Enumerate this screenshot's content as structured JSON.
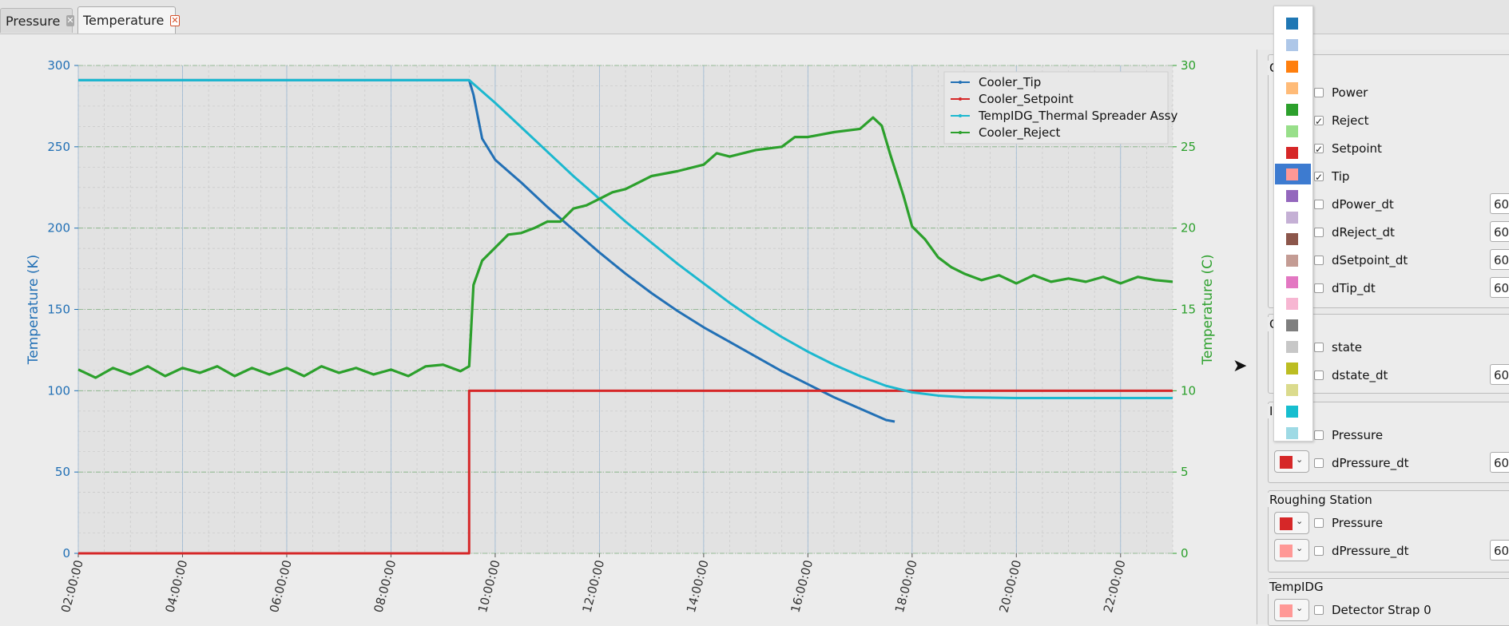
{
  "tabs": [
    {
      "label": "Pressure",
      "active": false
    },
    {
      "label": "Temperature",
      "active": true
    }
  ],
  "chart_data": {
    "type": "line",
    "x_ticks": [
      "02:00:00",
      "04:00:00",
      "06:00:00",
      "08:00:00",
      "10:00:00",
      "12:00:00",
      "14:00:00",
      "16:00:00",
      "18:00:00",
      "20:00:00",
      "22:00:00"
    ],
    "xlim": [
      "02:00:00",
      "23:00:00"
    ],
    "ylabel_left": "Temperature (K)",
    "ylabel_right": "Temperature (C)",
    "ylim_left": [
      0,
      300
    ],
    "ylim_right": [
      0,
      30
    ],
    "yticks_left": [
      "0",
      "50",
      "100",
      "150",
      "200",
      "250",
      "300"
    ],
    "yticks_right": [
      "0",
      "5",
      "10",
      "15",
      "20",
      "25",
      "30"
    ],
    "grid": true,
    "legend_position": "top-right",
    "series": [
      {
        "name": "Cooler_Tip",
        "axis": "left",
        "color": "#2270b5",
        "points": [
          [
            "02:00",
            291
          ],
          [
            "09:30",
            291
          ],
          [
            "09:35",
            282
          ],
          [
            "09:45",
            255
          ],
          [
            "10:00",
            242
          ],
          [
            "10:30",
            228
          ],
          [
            "11:00",
            213
          ],
          [
            "11:30",
            199
          ],
          [
            "12:00",
            185
          ],
          [
            "12:30",
            172
          ],
          [
            "13:00",
            160
          ],
          [
            "13:30",
            149
          ],
          [
            "14:00",
            139
          ],
          [
            "14:30",
            130
          ],
          [
            "15:00",
            121
          ],
          [
            "15:30",
            112
          ],
          [
            "16:00",
            104
          ],
          [
            "16:30",
            96
          ],
          [
            "17:00",
            89
          ],
          [
            "17:30",
            82
          ],
          [
            "17:40",
            81
          ]
        ]
      },
      {
        "name": "Cooler_Setpoint",
        "axis": "left",
        "color": "#d62728",
        "points": [
          [
            "02:00",
            0
          ],
          [
            "09:30",
            0
          ],
          [
            "09:30",
            100
          ],
          [
            "23:00",
            100
          ]
        ]
      },
      {
        "name": "TempIDG_Thermal Spreader Assy",
        "axis": "left",
        "color": "#1cb8cf",
        "points": [
          [
            "02:00",
            291
          ],
          [
            "09:30",
            291
          ],
          [
            "10:00",
            277
          ],
          [
            "10:30",
            262
          ],
          [
            "11:00",
            247
          ],
          [
            "11:30",
            232
          ],
          [
            "12:00",
            218
          ],
          [
            "12:30",
            204
          ],
          [
            "13:00",
            191
          ],
          [
            "13:30",
            178
          ],
          [
            "14:00",
            166
          ],
          [
            "14:30",
            154
          ],
          [
            "15:00",
            143
          ],
          [
            "15:30",
            133
          ],
          [
            "16:00",
            124
          ],
          [
            "16:30",
            116
          ],
          [
            "17:00",
            109
          ],
          [
            "17:30",
            103
          ],
          [
            "18:00",
            99
          ],
          [
            "18:30",
            97
          ],
          [
            "19:00",
            96
          ],
          [
            "20:00",
            95.5
          ],
          [
            "21:00",
            95.5
          ],
          [
            "22:00",
            95.5
          ],
          [
            "23:00",
            95.5
          ]
        ]
      },
      {
        "name": "Cooler_Reject",
        "axis": "right",
        "color": "#2ca02c",
        "points": [
          [
            "02:00",
            11.3
          ],
          [
            "02:20",
            10.8
          ],
          [
            "02:40",
            11.4
          ],
          [
            "03:00",
            11.0
          ],
          [
            "03:20",
            11.5
          ],
          [
            "03:40",
            10.9
          ],
          [
            "04:00",
            11.4
          ],
          [
            "04:20",
            11.1
          ],
          [
            "04:40",
            11.5
          ],
          [
            "05:00",
            10.9
          ],
          [
            "05:20",
            11.4
          ],
          [
            "05:40",
            11.0
          ],
          [
            "06:00",
            11.4
          ],
          [
            "06:20",
            10.9
          ],
          [
            "06:40",
            11.5
          ],
          [
            "07:00",
            11.1
          ],
          [
            "07:20",
            11.4
          ],
          [
            "07:40",
            11.0
          ],
          [
            "08:00",
            11.3
          ],
          [
            "08:20",
            10.9
          ],
          [
            "08:40",
            11.5
          ],
          [
            "09:00",
            11.6
          ],
          [
            "09:20",
            11.2
          ],
          [
            "09:30",
            11.5
          ],
          [
            "09:35",
            16.5
          ],
          [
            "09:45",
            18.0
          ],
          [
            "10:00",
            18.8
          ],
          [
            "10:15",
            19.6
          ],
          [
            "10:30",
            19.7
          ],
          [
            "10:45",
            20.0
          ],
          [
            "11:00",
            20.4
          ],
          [
            "11:15",
            20.4
          ],
          [
            "11:30",
            21.2
          ],
          [
            "11:45",
            21.4
          ],
          [
            "12:00",
            21.8
          ],
          [
            "12:15",
            22.2
          ],
          [
            "12:30",
            22.4
          ],
          [
            "12:45",
            22.8
          ],
          [
            "13:00",
            23.2
          ],
          [
            "13:30",
            23.5
          ],
          [
            "14:00",
            23.9
          ],
          [
            "14:15",
            24.6
          ],
          [
            "14:30",
            24.4
          ],
          [
            "15:00",
            24.8
          ],
          [
            "15:30",
            25.0
          ],
          [
            "15:45",
            25.6
          ],
          [
            "16:00",
            25.6
          ],
          [
            "16:30",
            25.9
          ],
          [
            "17:00",
            26.1
          ],
          [
            "17:15",
            26.8
          ],
          [
            "17:25",
            26.3
          ],
          [
            "17:35",
            24.5
          ],
          [
            "17:50",
            22.0
          ],
          [
            "18:00",
            20.1
          ],
          [
            "18:15",
            19.3
          ],
          [
            "18:30",
            18.2
          ],
          [
            "18:45",
            17.6
          ],
          [
            "19:00",
            17.2
          ],
          [
            "19:20",
            16.8
          ],
          [
            "19:40",
            17.1
          ],
          [
            "20:00",
            16.6
          ],
          [
            "20:20",
            17.1
          ],
          [
            "20:40",
            16.7
          ],
          [
            "21:00",
            16.9
          ],
          [
            "21:20",
            16.7
          ],
          [
            "21:40",
            17.0
          ],
          [
            "22:00",
            16.6
          ],
          [
            "22:20",
            17.0
          ],
          [
            "22:40",
            16.8
          ],
          [
            "23:00",
            16.7
          ]
        ]
      }
    ]
  },
  "popup_swatches": [
    "#1f77b4",
    "#aec7e8",
    "#ff7f0e",
    "#ffbb78",
    "#2ca02c",
    "#98df8a",
    "#d62728",
    "#ff9896",
    "#9467bd",
    "#c5b0d5",
    "#8c564b",
    "#c49c94",
    "#e377c2",
    "#f7b6d2",
    "#7f7f7f",
    "#c7c7c7",
    "#bcbd22",
    "#dbdb8d",
    "#17becf",
    "#9edae5"
  ],
  "popup_selected_index": 7,
  "panel": {
    "groups": [
      {
        "title": "C",
        "rows": [
          {
            "label": "Power",
            "checked": false
          },
          {
            "label": "Reject",
            "checked": true
          },
          {
            "label": "Setpoint",
            "checked": true
          },
          {
            "label": "Tip",
            "checked": true
          },
          {
            "label": "dPower_dt",
            "checked": false,
            "number": "60"
          },
          {
            "label": "dReject_dt",
            "checked": false,
            "number": "60"
          },
          {
            "label": "dSetpoint_dt",
            "checked": false,
            "number": "60"
          },
          {
            "label": "dTip_dt",
            "checked": false,
            "number": "60"
          }
        ]
      },
      {
        "title": "G      ve",
        "rows": [
          {
            "label": "state",
            "checked": false
          },
          {
            "label": "dstate_dt",
            "checked": false,
            "number": "60"
          }
        ]
      },
      {
        "title": "Io      e",
        "rows": [
          {
            "label": "Pressure",
            "checked": false
          },
          {
            "label": "dPressure_dt",
            "checked": false,
            "number": "60"
          }
        ]
      },
      {
        "title": "Roughing Station",
        "rows": [
          {
            "label": "Pressure",
            "checked": false
          },
          {
            "label": "dPressure_dt",
            "checked": false,
            "number": "60"
          }
        ]
      },
      {
        "title": "TempIDG",
        "rows": [
          {
            "label": "Detector Strap 0",
            "checked": false
          }
        ]
      }
    ],
    "check_mark": "✓",
    "dropdown_glyph": "⌄",
    "expand_arrow": "➤"
  }
}
